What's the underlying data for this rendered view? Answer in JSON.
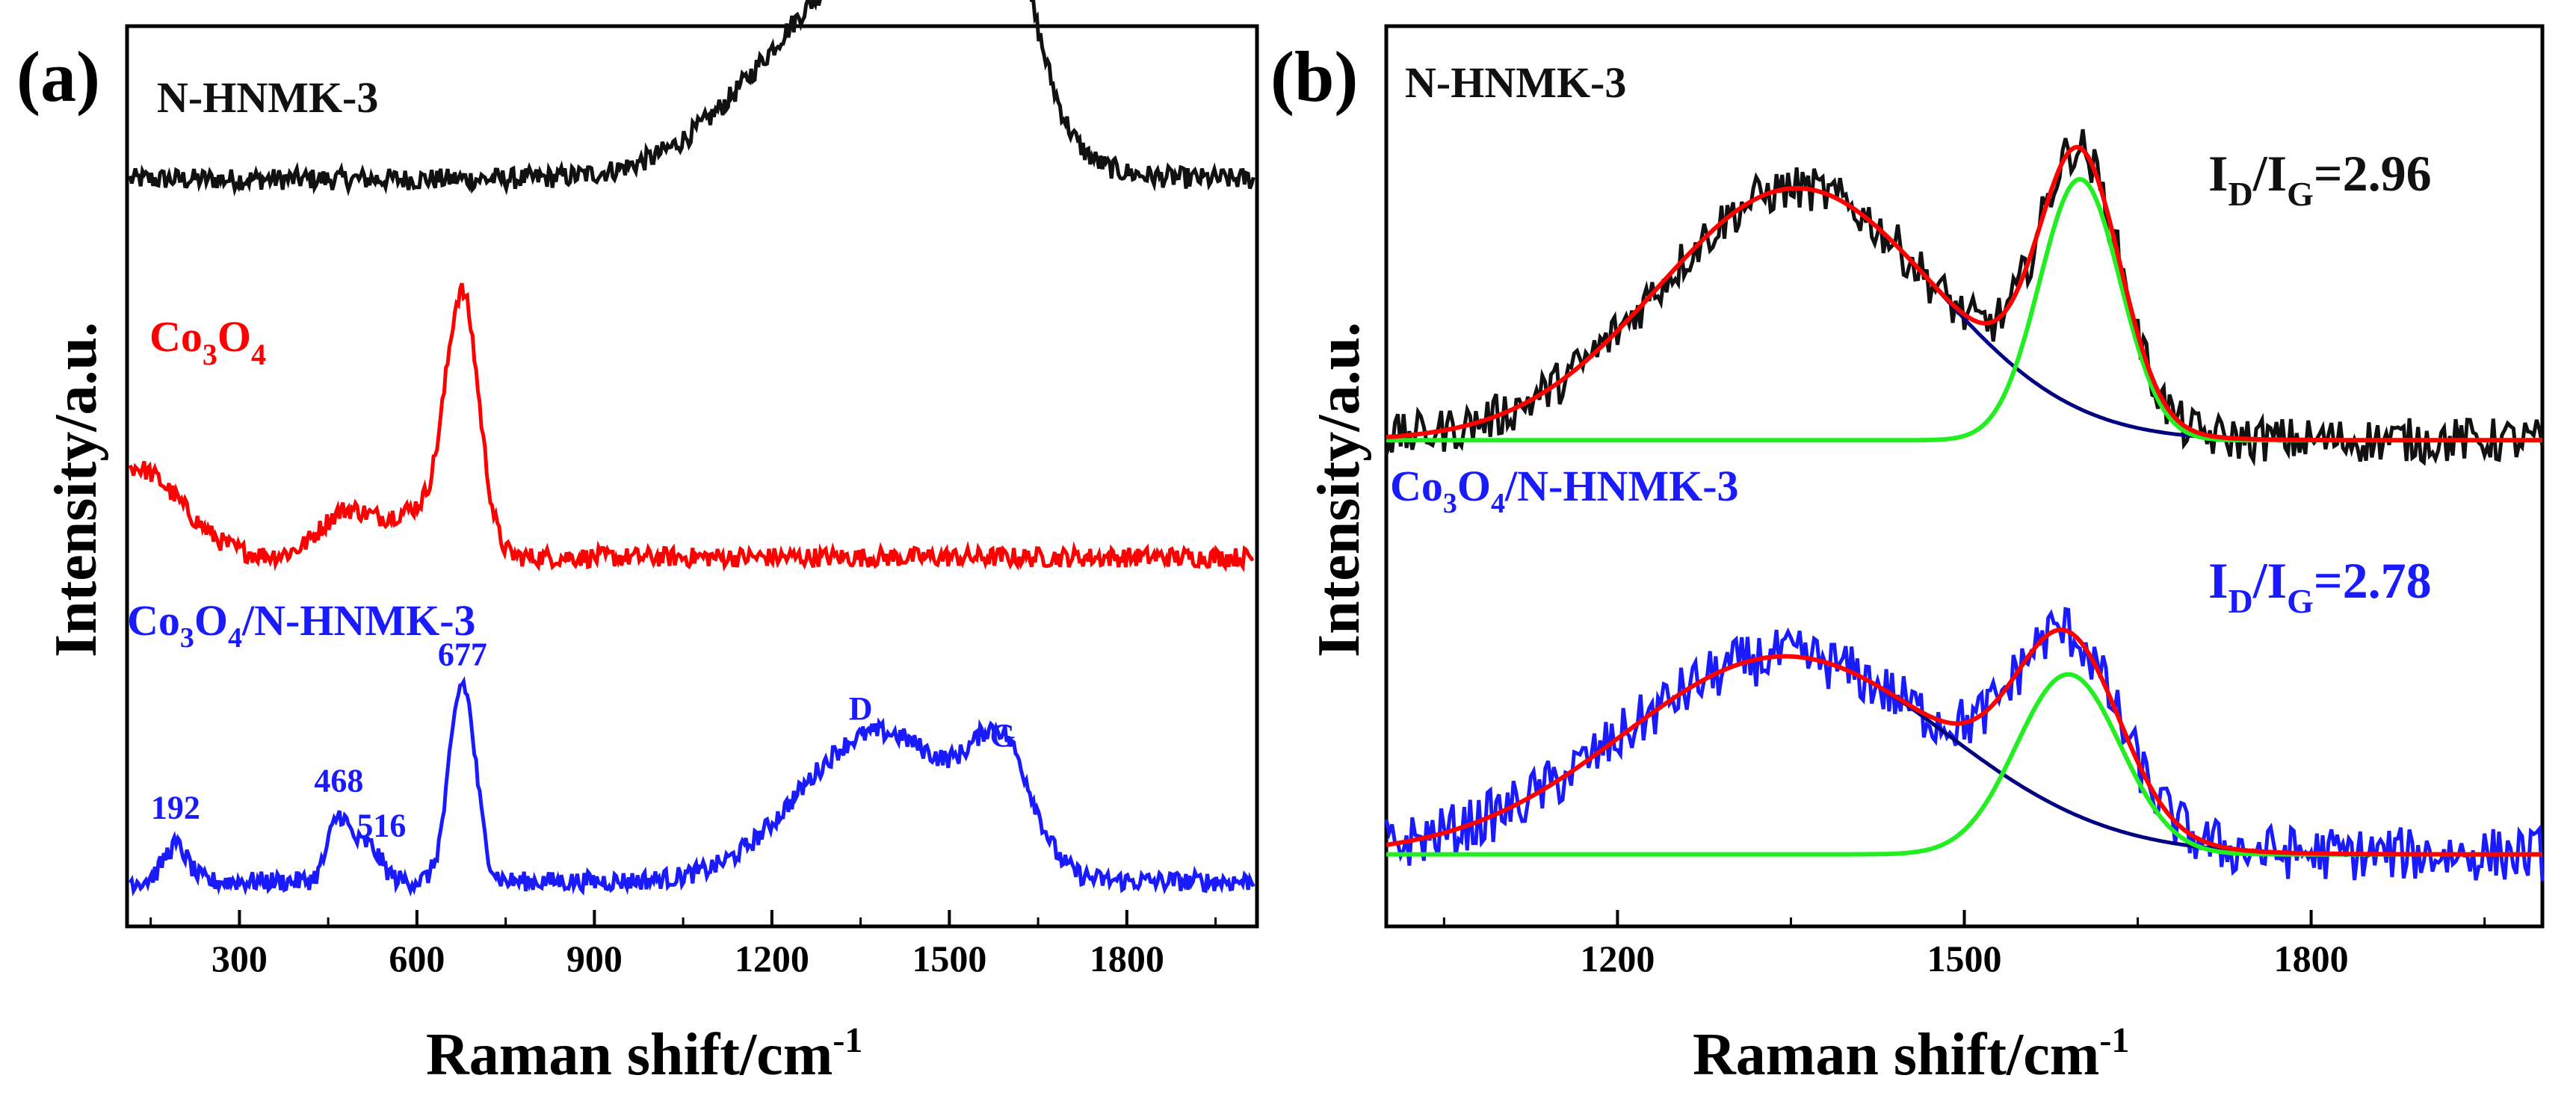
{
  "figure": {
    "panel_a_letter": "(a)",
    "panel_b_letter": "(b)"
  },
  "colors": {
    "black": "#111111",
    "red": "#ff0000",
    "blue": "#1a1aff",
    "green": "#22ee22",
    "navy": "#000080"
  },
  "chart_data": [
    {
      "type": "line",
      "panel": "(a)",
      "title": "",
      "xlabel": "Raman shift/cm",
      "xlabel_superscript": "-1",
      "ylabel": "Intensity/a.u.",
      "xlim": [
        110,
        2020
      ],
      "xticks": [
        300,
        600,
        900,
        1200,
        1500,
        1800
      ],
      "xtick_labels": [
        "300",
        "600",
        "900",
        "1200",
        "1500",
        "1800"
      ],
      "ylim": [
        0,
        1
      ],
      "grid": false,
      "legend": "labels placed next to traces",
      "series": [
        {
          "name": "N-HNMK-3",
          "label_main": "N-HNMK-3",
          "color": "#111111",
          "baseline": 0.83,
          "noise": 0.012,
          "peaks": [
            {
              "center": 1350,
              "height": 0.21,
              "width": 170
            },
            {
              "center": 1590,
              "height": 0.18,
              "width": 55
            },
            {
              "center": 1485,
              "height": 0.07,
              "width": 110
            }
          ]
        },
        {
          "name": "Co3O4",
          "label_parts": [
            "Co",
            "3",
            "O",
            "4"
          ],
          "color": "#ff0000",
          "baseline": 0.41,
          "noise": 0.011,
          "peaks": [
            {
              "center": 677,
              "height": 0.28,
              "width": 28
            },
            {
              "center": 120,
              "height": 0.1,
              "width": 80
            },
            {
              "center": 480,
              "height": 0.05,
              "width": 45
            },
            {
              "center": 600,
              "height": 0.05,
              "width": 50
            }
          ]
        },
        {
          "name": "Co3O4/N-HNMK-3",
          "label_parts": [
            "Co",
            "3",
            "O",
            "4",
            "/N-HNMK-3"
          ],
          "color": "#1a1aff",
          "baseline": 0.05,
          "noise": 0.011,
          "peaks": [
            {
              "center": 192,
              "height": 0.04,
              "width": 20
            },
            {
              "center": 468,
              "height": 0.07,
              "width": 18
            },
            {
              "center": 516,
              "height": 0.04,
              "width": 22
            },
            {
              "center": 677,
              "height": 0.22,
              "width": 22
            },
            {
              "center": 1350,
              "height": 0.14,
              "width": 120
            },
            {
              "center": 1590,
              "height": 0.12,
              "width": 50
            },
            {
              "center": 1480,
              "height": 0.05,
              "width": 100
            }
          ]
        }
      ],
      "annotations": [
        {
          "text": "192",
          "x": 192,
          "y": 0.12
        },
        {
          "text": "468",
          "x": 468,
          "y": 0.15
        },
        {
          "text": "516",
          "x": 540,
          "y": 0.1
        },
        {
          "text": "677",
          "x": 677,
          "y": 0.29
        },
        {
          "text": "D",
          "x": 1350,
          "y": 0.23
        },
        {
          "text": "G",
          "x": 1590,
          "y": 0.2
        }
      ]
    },
    {
      "type": "line",
      "panel": "(b)",
      "title": "",
      "xlabel": "Raman shift/cm",
      "xlabel_superscript": "-1",
      "ylabel": "Intensity/a.u.",
      "xlim": [
        1000,
        2000
      ],
      "xticks": [
        1200,
        1500,
        1800
      ],
      "xtick_labels": [
        "1200",
        "1500",
        "1800"
      ],
      "minor_xticks": [
        1050,
        1350,
        1650,
        1950
      ],
      "ylim": [
        0,
        1
      ],
      "grid": false,
      "legend": "labels placed next to traces",
      "series": [
        {
          "name": "N-HNMK-3",
          "label_main": "N-HNMK-3",
          "ratio_text": {
            "base": "I",
            "sub1": "D",
            "slash": "/I",
            "sub2": "G",
            "value": "=2.96"
          },
          "ratio": 2.96,
          "color_data": "#111111",
          "baseline": 0.54,
          "noise": 0.025,
          "d_band": {
            "center": 1355,
            "height": 0.28,
            "width": 120
          },
          "g_band": {
            "center": 1600,
            "height": 0.29,
            "width": 35
          }
        },
        {
          "name": "Co3O4/N-HNMK-3",
          "label_parts": [
            "Co",
            "3",
            "O",
            "4",
            "/N-HNMK-3"
          ],
          "ratio_text": {
            "base": "I",
            "sub1": "D",
            "slash": "/I",
            "sub2": "G",
            "value": "=2.78"
          },
          "ratio": 2.78,
          "color_data": "#1a1aff",
          "baseline": 0.08,
          "noise": 0.03,
          "d_band": {
            "center": 1345,
            "height": 0.22,
            "width": 140
          },
          "g_band": {
            "center": 1590,
            "height": 0.2,
            "width": 45
          }
        }
      ],
      "fit_colors": {
        "d_band": "#000080",
        "g_band": "#22ee22",
        "sum": "#ff0000"
      }
    }
  ]
}
